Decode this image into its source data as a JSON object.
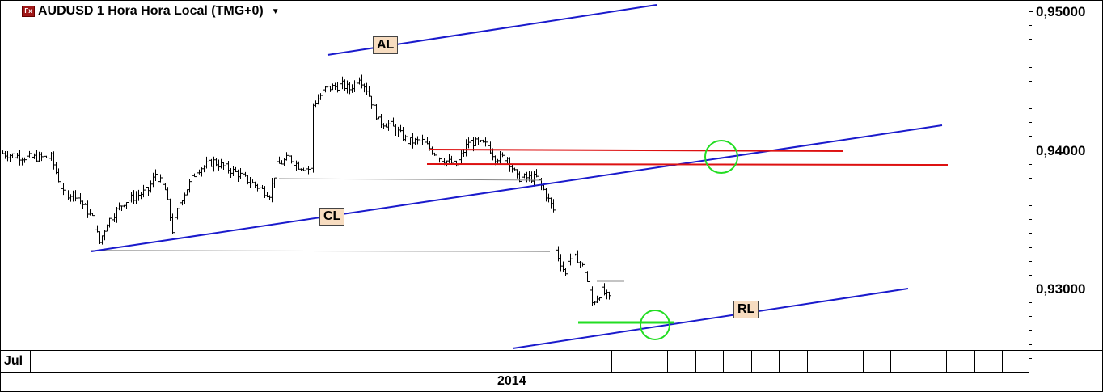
{
  "header": {
    "title": "AUDUSD 1 Hora Hora Local (TMG+0)",
    "icon": "fx-icon",
    "dropdown": "caret-down-icon"
  },
  "chart_data": {
    "type": "ohlc",
    "title": "AUDUSD 1 Hora Hora Local (TMG+0)",
    "ylim": [
      0.9248,
      0.9508
    ],
    "y_ticks": [
      "0,95000",
      "0,94000",
      "0,93000"
    ],
    "x_labels": [
      "Jul",
      "2014"
    ],
    "grid": false,
    "price_path": {
      "bar_index": [
        0,
        10,
        20,
        25,
        30,
        37,
        40,
        43,
        50,
        60,
        63,
        67,
        70,
        73,
        80,
        87,
        97,
        107,
        110,
        113,
        118,
        122,
        127,
        128,
        133,
        140,
        143,
        147,
        150,
        155,
        160,
        167,
        173,
        180,
        187,
        192,
        200,
        203,
        208,
        212,
        220,
        223,
        227,
        228,
        232,
        233,
        237,
        240,
        243,
        247,
        250
      ],
      "price": [
        0.93974,
        0.93945,
        0.93945,
        0.93682,
        0.93682,
        0.93507,
        0.93332,
        0.93478,
        0.93624,
        0.93711,
        0.93828,
        0.93711,
        0.9342,
        0.93624,
        0.93857,
        0.93915,
        0.93828,
        0.93711,
        0.93682,
        0.93886,
        0.93945,
        0.93886,
        0.93857,
        0.94324,
        0.9444,
        0.94469,
        0.9444,
        0.94528,
        0.9444,
        0.94207,
        0.94178,
        0.94061,
        0.94061,
        0.93945,
        0.93886,
        0.94061,
        0.94032,
        0.93945,
        0.93945,
        0.93799,
        0.93799,
        0.93711,
        0.93566,
        0.93274,
        0.93099,
        0.93216,
        0.93216,
        0.93128,
        0.92895,
        0.92983,
        0.92924
      ]
    },
    "annotations": {
      "labels": [
        "AL",
        "CL",
        "RL"
      ],
      "trendline_color": "#1a1acc",
      "level_color": "#dd1111",
      "marker_color": "#22dd22",
      "bar_color": "#000000"
    }
  }
}
